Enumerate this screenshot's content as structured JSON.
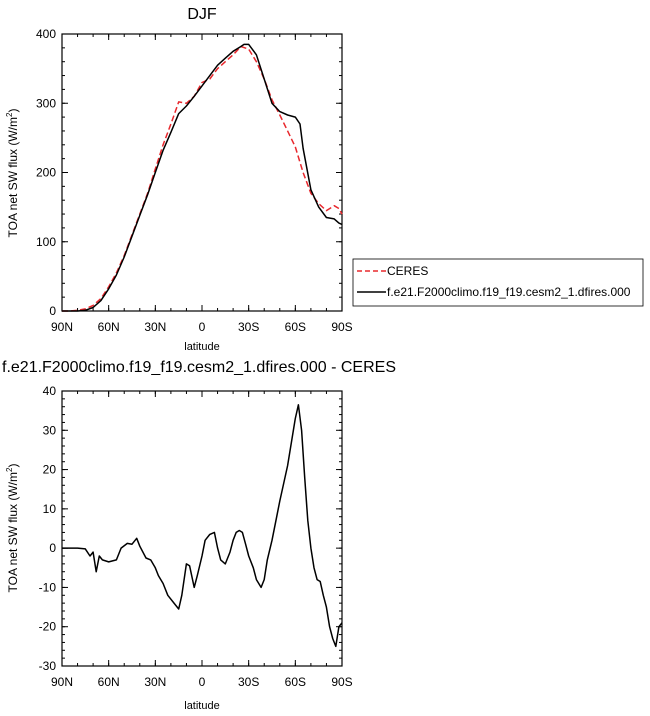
{
  "chart_data": [
    {
      "type": "line",
      "title": "DJF",
      "xlabel": "latitude",
      "ylabel": "TOA net SW flux (W/m",
      "ylabel_superscript": "2",
      "ylabel_close": ")",
      "x_ticks": [
        90,
        60,
        30,
        0,
        -30,
        -60,
        -90
      ],
      "x_tick_labels": [
        "90N",
        "60N",
        "30N",
        "0",
        "30S",
        "60S",
        "90S"
      ],
      "xlim": [
        90,
        -90
      ],
      "ylim": [
        0,
        400
      ],
      "y_ticks": [
        0,
        100,
        200,
        300,
        400
      ],
      "y_tick_labels": [
        "0",
        "100",
        "200",
        "300",
        "400"
      ],
      "grid": false,
      "legend_placement": "right, outside plot",
      "series": [
        {
          "name": "CERES",
          "color": "#e8282d",
          "style": "dashed",
          "x": [
            90,
            85,
            80,
            75,
            70,
            65,
            60,
            55,
            50,
            45,
            40,
            35,
            30,
            25,
            20,
            15,
            10,
            5,
            0,
            -5,
            -10,
            -15,
            -20,
            -25,
            -30,
            -35,
            -40,
            -45,
            -50,
            -55,
            -60,
            -65,
            -70,
            -75,
            -80,
            -85,
            -88,
            -90
          ],
          "y": [
            0,
            0,
            1,
            3,
            8,
            18,
            35,
            55,
            80,
            110,
            140,
            170,
            205,
            240,
            270,
            302,
            300,
            310,
            330,
            335,
            350,
            360,
            370,
            382,
            378,
            360,
            335,
            305,
            283,
            260,
            237,
            200,
            170,
            155,
            145,
            152,
            148,
            140
          ]
        },
        {
          "name": "f.e21.F2000climo.f19_f19.cesm2_1.dfires.000",
          "color": "#000000",
          "style": "solid",
          "x": [
            90,
            85,
            80,
            75,
            70,
            65,
            60,
            55,
            50,
            45,
            40,
            35,
            30,
            25,
            20,
            15,
            10,
            5,
            0,
            -5,
            -10,
            -15,
            -20,
            -25,
            -27,
            -30,
            -35,
            -40,
            -45,
            -50,
            -55,
            -60,
            -63,
            -65,
            -70,
            -75,
            -80,
            -85,
            -88,
            -90
          ],
          "y": [
            0,
            0,
            0,
            1,
            5,
            15,
            32,
            52,
            78,
            108,
            138,
            168,
            200,
            232,
            258,
            285,
            296,
            310,
            325,
            340,
            355,
            365,
            375,
            382,
            385,
            385,
            370,
            335,
            300,
            288,
            283,
            280,
            270,
            235,
            175,
            150,
            135,
            133,
            127,
            125
          ]
        }
      ]
    },
    {
      "type": "line",
      "title": "f.e21.F2000climo.f19_f19.cesm2_1.dfires.000 - CERES",
      "xlabel": "latitude",
      "ylabel": "TOA net SW flux (W/m",
      "ylabel_superscript": "2",
      "ylabel_close": ")",
      "x_ticks": [
        90,
        60,
        30,
        0,
        -30,
        -60,
        -90
      ],
      "x_tick_labels": [
        "90N",
        "60N",
        "30N",
        "0",
        "30S",
        "60S",
        "90S"
      ],
      "xlim": [
        90,
        -90
      ],
      "ylim": [
        -30,
        40
      ],
      "y_ticks": [
        -30,
        -20,
        -10,
        0,
        10,
        20,
        30,
        40
      ],
      "y_tick_labels": [
        "-30",
        "-20",
        "-10",
        "0",
        "10",
        "20",
        "30",
        "40"
      ],
      "grid": false,
      "series": [
        {
          "color": "#000000",
          "style": "solid",
          "x": [
            90,
            85,
            80,
            75,
            72,
            70,
            68,
            66,
            64,
            60,
            55,
            52,
            48,
            45,
            42,
            40,
            36,
            33,
            30,
            28,
            25,
            22,
            18,
            15,
            13,
            10,
            8,
            5,
            3,
            0,
            -2,
            -5,
            -8,
            -10,
            -12,
            -15,
            -18,
            -20,
            -22,
            -24,
            -26,
            -28,
            -30,
            -33,
            -35,
            -38,
            -40,
            -42,
            -45,
            -48,
            -50,
            -55,
            -60,
            -62,
            -64,
            -66,
            -68,
            -70,
            -72,
            -74,
            -76,
            -78,
            -80,
            -82,
            -84,
            -86,
            -88,
            -90
          ],
          "y": [
            0,
            0,
            0,
            -0.2,
            -2,
            -1,
            -6,
            -2,
            -3,
            -3.5,
            -3,
            0,
            1.2,
            1,
            2.5,
            0.5,
            -2.5,
            -3,
            -5,
            -7,
            -9,
            -12,
            -14,
            -15.5,
            -12,
            -4,
            -4.5,
            -10,
            -7,
            -2,
            2,
            3.5,
            4,
            0,
            -3,
            -4,
            -1,
            2,
            4,
            4.5,
            4,
            1,
            -2,
            -5,
            -8,
            -10,
            -8,
            -3,
            2,
            8,
            12,
            21,
            33,
            36.5,
            30,
            18,
            7,
            0,
            -5,
            -8,
            -8.5,
            -12,
            -15,
            -20,
            -23,
            -25,
            -20,
            -19
          ]
        }
      ]
    }
  ]
}
